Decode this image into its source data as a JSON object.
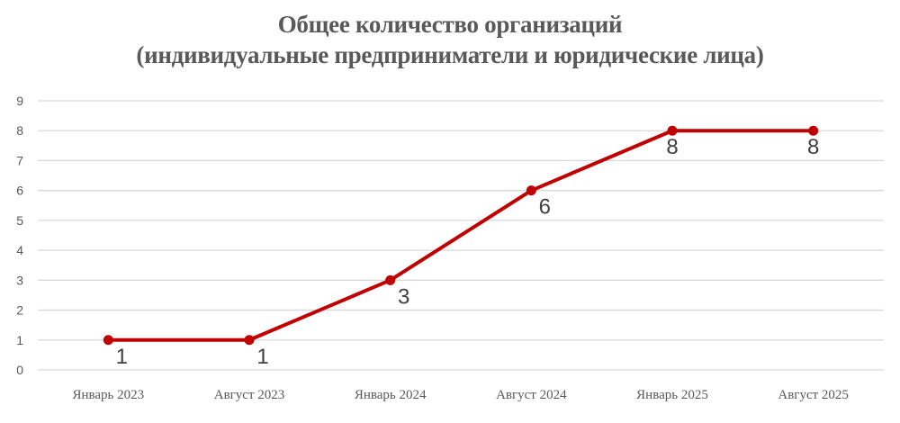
{
  "chart_data": {
    "type": "line",
    "title": "Общее количество организаций",
    "subtitle": "(индивидуальные предприниматели и юридические лица)",
    "categories": [
      "Январь 2023",
      "Август 2023",
      "Январь 2024",
      "Август 2024",
      "Январь 2025",
      "Август 2025"
    ],
    "series": [
      {
        "name": "Общее количество организаций",
        "values": [
          1,
          1,
          3,
          6,
          8,
          8
        ],
        "color": "#C00000"
      }
    ],
    "xlabel": "",
    "ylabel": "",
    "ylim": [
      0,
      9
    ],
    "yticks": [
      "0",
      "1",
      "2",
      "3",
      "4",
      "5",
      "6",
      "7",
      "8",
      "9"
    ],
    "grid": true,
    "legend": "none",
    "data_labels": [
      "1",
      "1",
      "3",
      "6",
      "8",
      "8"
    ]
  }
}
